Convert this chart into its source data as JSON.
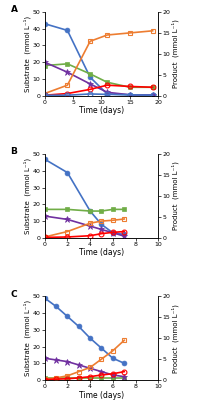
{
  "panel_A": {
    "xlabel": "Time (days)",
    "ylabel_left": "Substrate  (mmol L⁻¹)",
    "ylabel_right": "Product  (mmol L⁻¹)",
    "xlim": [
      0,
      20
    ],
    "ylim_left": [
      0,
      50
    ],
    "ylim_right": [
      0,
      20
    ],
    "yticks_left": [
      0,
      10,
      20,
      30,
      40,
      50
    ],
    "yticks_right": [
      0,
      5,
      10,
      15,
      20
    ],
    "xticks": [
      0,
      5,
      10,
      15,
      20
    ],
    "series": [
      {
        "x": [
          0,
          4,
          8,
          11,
          15,
          19
        ],
        "y": [
          43,
          39,
          11,
          1,
          0.5,
          0.3
        ],
        "color": "#4472C4",
        "marker": "o",
        "axis": "left",
        "filled": true,
        "linewidth": 1.2,
        "markersize": 3.5
      },
      {
        "x": [
          0,
          4,
          8,
          11,
          15,
          19
        ],
        "y": [
          18,
          19,
          13,
          8,
          5,
          5
        ],
        "color": "#70AD47",
        "marker": "s",
        "axis": "left",
        "filled": true,
        "linewidth": 1.2,
        "markersize": 3.5
      },
      {
        "x": [
          0,
          4,
          8,
          11,
          15,
          19
        ],
        "y": [
          20,
          14,
          7,
          2,
          0.5,
          0.3
        ],
        "color": "#7030A0",
        "marker": "*",
        "axis": "left",
        "filled": true,
        "linewidth": 1.2,
        "markersize": 4.5
      },
      {
        "x": [
          0,
          4,
          8,
          11,
          15,
          19
        ],
        "y": [
          0.5,
          2.5,
          13,
          14.5,
          15,
          15.5
        ],
        "color": "#ED7D31",
        "marker": "s",
        "axis": "right",
        "filled": false,
        "linewidth": 1.2,
        "markersize": 3.5
      },
      {
        "x": [
          0,
          4,
          8,
          11,
          15,
          19
        ],
        "y": [
          0.1,
          0.5,
          1.5,
          2.5,
          2.2,
          2.0
        ],
        "color": "#FF0000",
        "marker": "o",
        "axis": "right",
        "filled": false,
        "linewidth": 1.2,
        "markersize": 3.5
      },
      {
        "x": [
          0,
          4,
          8,
          11,
          15,
          19
        ],
        "y": [
          0.1,
          0.1,
          0.4,
          0.3,
          0.2,
          0.1
        ],
        "color": "#4472C4",
        "marker": "o",
        "axis": "right",
        "filled": false,
        "linewidth": 1.2,
        "markersize": 3.5
      }
    ],
    "label": "A"
  },
  "panel_B": {
    "xlabel": "Time (days)",
    "ylabel_left": "Substrate  (mmol L⁻¹)",
    "ylabel_right": "Product  (mmol L⁻¹)",
    "xlim": [
      0,
      10
    ],
    "ylim_left": [
      0,
      50
    ],
    "ylim_right": [
      0,
      20
    ],
    "yticks_left": [
      0,
      10,
      20,
      30,
      40,
      50
    ],
    "yticks_right": [
      0,
      5,
      10,
      15,
      20
    ],
    "xticks": [
      0,
      2,
      4,
      6,
      8,
      10
    ],
    "series": [
      {
        "x": [
          0,
          2,
          4,
          5,
          6,
          7
        ],
        "y": [
          47,
          39,
          16,
          8,
          3,
          2
        ],
        "color": "#4472C4",
        "marker": "o",
        "axis": "left",
        "filled": true,
        "linewidth": 1.2,
        "markersize": 3.5
      },
      {
        "x": [
          0,
          2,
          4,
          5,
          6,
          7
        ],
        "y": [
          17,
          17,
          16,
          16,
          17,
          17
        ],
        "color": "#70AD47",
        "marker": "s",
        "axis": "left",
        "filled": true,
        "linewidth": 1.2,
        "markersize": 3.5
      },
      {
        "x": [
          0,
          2,
          4,
          5,
          6,
          7
        ],
        "y": [
          13,
          11,
          7,
          5,
          3,
          1
        ],
        "color": "#7030A0",
        "marker": "*",
        "axis": "left",
        "filled": true,
        "linewidth": 1.2,
        "markersize": 4.5
      },
      {
        "x": [
          0,
          2,
          4,
          5,
          6,
          7
        ],
        "y": [
          0.2,
          1.5,
          3.5,
          4.0,
          4.2,
          4.5
        ],
        "color": "#ED7D31",
        "marker": "s",
        "axis": "right",
        "filled": false,
        "linewidth": 1.2,
        "markersize": 3.5
      },
      {
        "x": [
          0,
          2,
          4,
          5,
          6,
          7
        ],
        "y": [
          0.1,
          0.2,
          0.5,
          1.0,
          1.3,
          1.5
        ],
        "color": "#FF0000",
        "marker": "o",
        "axis": "right",
        "filled": false,
        "linewidth": 1.2,
        "markersize": 3.5
      }
    ],
    "label": "B"
  },
  "panel_C": {
    "xlabel": "Time (days)",
    "ylabel_left": "Substrate  (mmol L⁻¹)",
    "ylabel_right": "Product  (mmol L⁻¹)",
    "xlim": [
      0,
      10
    ],
    "ylim_left": [
      0,
      50
    ],
    "ylim_right": [
      0,
      20
    ],
    "yticks_left": [
      0,
      10,
      20,
      30,
      40,
      50
    ],
    "yticks_right": [
      0,
      5,
      10,
      15,
      20
    ],
    "xticks": [
      0,
      2,
      4,
      6,
      8,
      10
    ],
    "series": [
      {
        "x": [
          0,
          1,
          2,
          3,
          4,
          5,
          6,
          7
        ],
        "y": [
          49,
          44,
          38,
          32,
          25,
          19,
          13,
          10
        ],
        "color": "#4472C4",
        "marker": "o",
        "axis": "left",
        "filled": true,
        "linewidth": 1.2,
        "markersize": 3.5
      },
      {
        "x": [
          0,
          1,
          2,
          3,
          4,
          5,
          6,
          7
        ],
        "y": [
          1,
          1,
          1,
          1,
          1,
          1,
          1,
          1
        ],
        "color": "#70AD47",
        "marker": "s",
        "axis": "left",
        "filled": true,
        "linewidth": 1.2,
        "markersize": 3.5
      },
      {
        "x": [
          0,
          1,
          2,
          3,
          4,
          5,
          6,
          7
        ],
        "y": [
          13,
          12,
          11,
          9,
          7,
          5,
          3,
          2
        ],
        "color": "#7030A0",
        "marker": "*",
        "axis": "left",
        "filled": true,
        "linewidth": 1.2,
        "markersize": 4.5
      },
      {
        "x": [
          0,
          1,
          2,
          3,
          4,
          5,
          6,
          7
        ],
        "y": [
          0.2,
          0.5,
          1.0,
          2.0,
          3.0,
          5.0,
          7.0,
          9.5
        ],
        "color": "#ED7D31",
        "marker": "s",
        "axis": "right",
        "filled": false,
        "linewidth": 1.2,
        "markersize": 3.5
      },
      {
        "x": [
          0,
          1,
          2,
          3,
          4,
          5,
          6,
          7
        ],
        "y": [
          0.1,
          0.2,
          0.3,
          0.5,
          0.8,
          1.2,
          1.5,
          2.0
        ],
        "color": "#FF0000",
        "marker": "o",
        "axis": "right",
        "filled": false,
        "linewidth": 1.2,
        "markersize": 3.5
      }
    ],
    "label": "C"
  },
  "figure_background": "#FFFFFF",
  "font_size": 5.5,
  "label_font_size": 5.0,
  "tick_font_size": 4.5
}
